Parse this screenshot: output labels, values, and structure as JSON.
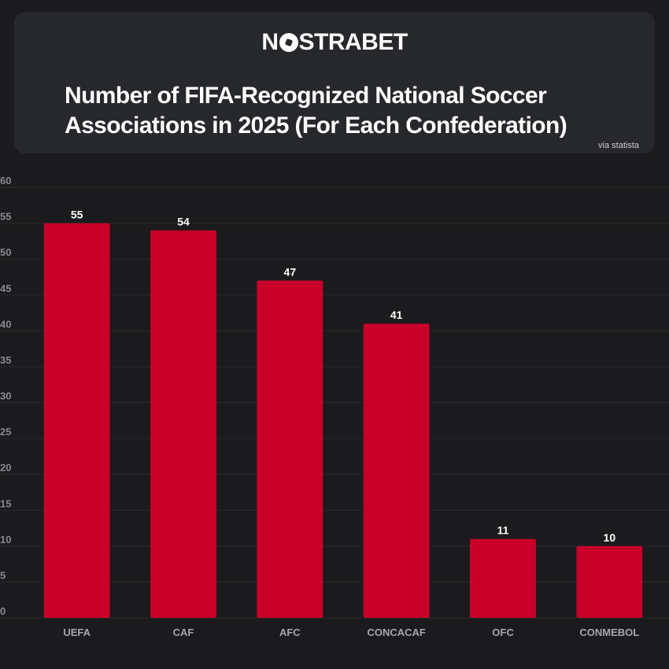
{
  "header": {
    "logo_text_1": "N",
    "logo_text_2": "STRABET",
    "title": "Number of FIFA-Recognized National Soccer Associations in 2025 (For Each Confederation)",
    "source": "via statista"
  },
  "colors": {
    "bar": "#c8002a",
    "background": "#1b1b1d",
    "card": "#27282b",
    "grid": "#2b2b2e",
    "tick_label": "#8a8a8e",
    "category_label": "#a7a7ab",
    "value_label": "#ffffff"
  },
  "chart_data": {
    "type": "bar",
    "categories": [
      "UEFA",
      "CAF",
      "AFC",
      "CONCACAF",
      "OFC",
      "CONMEBOL"
    ],
    "values": [
      55,
      54,
      47,
      41,
      11,
      10
    ],
    "data_labels": [
      "55",
      "54",
      "47",
      "41",
      "11",
      "10"
    ],
    "ylim": [
      0,
      60
    ],
    "yticks": [
      0,
      5,
      10,
      15,
      20,
      25,
      30,
      35,
      40,
      45,
      50,
      55,
      60
    ],
    "ytick_labels": [
      "0",
      "5",
      "10",
      "15",
      "20",
      "25",
      "30",
      "35",
      "40",
      "45",
      "50",
      "55",
      "60"
    ],
    "title": "",
    "xlabel": "",
    "ylabel": "",
    "grid": true,
    "legend": "none"
  }
}
